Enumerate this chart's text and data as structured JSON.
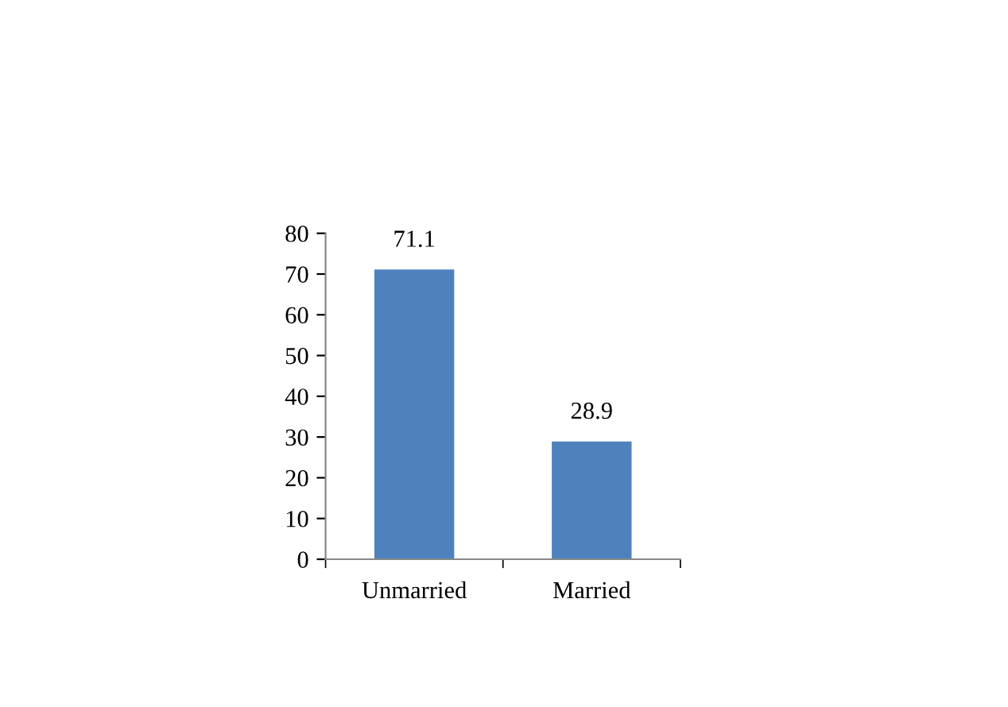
{
  "chart_data": {
    "type": "bar",
    "categories": [
      "Unmarried",
      "Married"
    ],
    "values": [
      71.1,
      28.9
    ],
    "color": "#4f81bd",
    "ylim": [
      0,
      80
    ],
    "yticks": [
      0,
      10,
      20,
      30,
      40,
      50,
      60,
      70,
      80
    ],
    "grid": false,
    "data_labels": true
  }
}
